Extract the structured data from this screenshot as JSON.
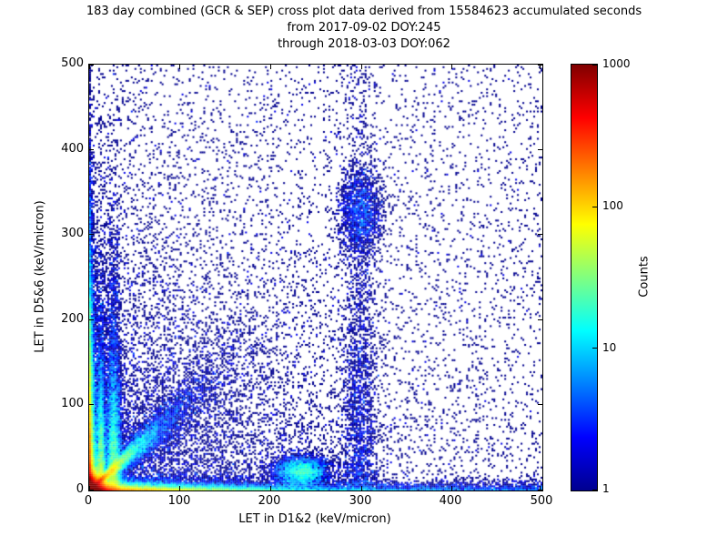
{
  "chart_data": {
    "type": "scatter",
    "title": "183 day combined (GCR & SEP) cross plot data derived from 15584623 accumulated seconds",
    "subtitle1": "from 2017-09-02 DOY:245",
    "subtitle2": "through 2018-03-03 DOY:062",
    "xlabel": "LET in D1&2 (keV/micron)",
    "ylabel": "LET in D5&6 (keV/micron)",
    "xlim": [
      0,
      500
    ],
    "ylim": [
      0,
      500
    ],
    "x_ticks": [
      "0",
      "100",
      "200",
      "300",
      "400",
      "500"
    ],
    "y_ticks": [
      "0",
      "100",
      "200",
      "300",
      "400",
      "500"
    ],
    "grid": false,
    "colorbar": {
      "label": "Counts",
      "scale": "log",
      "tick_labels": [
        "1000",
        "100",
        "10",
        "1"
      ],
      "colormap": "jet",
      "stops": [
        "#00008f",
        "#0000ff",
        "#0080ff",
        "#00ffff",
        "#80ff80",
        "#ffff00",
        "#ff8000",
        "#ff0000",
        "#800000"
      ]
    },
    "density": {
      "seed": 42,
      "samples": 150000,
      "bins": 250,
      "log_max": 3,
      "components": [
        {
          "type": "exp2d",
          "weight": 0.44,
          "mx": 5.5,
          "my": 5.5
        },
        {
          "type": "exp2d",
          "weight": 0.12,
          "mx": 70,
          "my": 3
        },
        {
          "type": "hband",
          "weight": 0.02,
          "my": 4
        },
        {
          "type": "exp2d",
          "weight": 0.12,
          "mx": 2,
          "my": 75
        },
        {
          "type": "diag",
          "weight": 0.08,
          "mt": 35,
          "slope": 0.95,
          "spread": 0.15
        },
        {
          "type": "vband",
          "weight": 0.05,
          "x0": 27,
          "sx": 4,
          "my": 65
        },
        {
          "type": "vband",
          "weight": 0.04,
          "x0": 13,
          "sx": 2.5,
          "my": 55
        },
        {
          "type": "vband",
          "weight": 0.015,
          "x0": 298,
          "sx": 10,
          "my": 180
        },
        {
          "type": "blob",
          "weight": 0.025,
          "x0": 235,
          "y0": 22,
          "sx": 14,
          "sy": 9
        },
        {
          "type": "blob",
          "weight": 0.01,
          "x0": 300,
          "y0": 325,
          "sx": 12,
          "sy": 25
        },
        {
          "type": "exp2d",
          "weight": 0.05,
          "mx": 120,
          "my": 120
        },
        {
          "type": "uniform",
          "weight": 0.03
        }
      ]
    }
  }
}
